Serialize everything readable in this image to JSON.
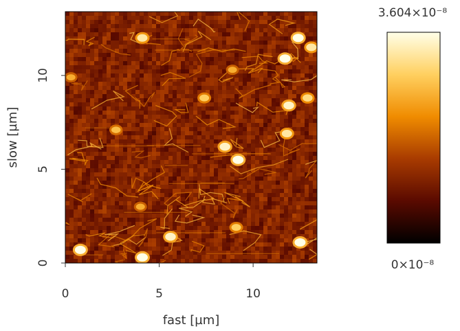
{
  "chart_data": {
    "type": "heatmap",
    "title": "",
    "xlabel": "fast [µm]",
    "ylabel": "slow [µm]",
    "xlim": [
      0,
      13.4
    ],
    "ylim": [
      0,
      13.4
    ],
    "xticks": [
      {
        "value": 0,
        "label": "0"
      },
      {
        "value": 5,
        "label": "5"
      },
      {
        "value": 10,
        "label": "10"
      }
    ],
    "yticks": [
      {
        "value": 0,
        "label": "0"
      },
      {
        "value": 5,
        "label": "5"
      },
      {
        "value": 10,
        "label": "10"
      }
    ],
    "colorbar": {
      "colormap": "afmhot",
      "min": 0,
      "max": 3.604e-08,
      "min_label": "0×10⁻⁸",
      "max_label": "3.604×10⁻⁸",
      "colors": [
        "#000000",
        "#5a0a00",
        "#a83b00",
        "#f08c00",
        "#ffd060",
        "#ffffe8"
      ]
    },
    "features": [
      {
        "x": 0.8,
        "y": 0.7,
        "level": 1.0
      },
      {
        "x": 4.1,
        "y": 0.3,
        "level": 1.0
      },
      {
        "x": 5.6,
        "y": 1.4,
        "level": 0.95
      },
      {
        "x": 12.5,
        "y": 1.1,
        "level": 1.0
      },
      {
        "x": 9.1,
        "y": 1.9,
        "level": 0.8
      },
      {
        "x": 4.0,
        "y": 3.0,
        "level": 0.7
      },
      {
        "x": 9.2,
        "y": 5.5,
        "level": 1.0
      },
      {
        "x": 8.5,
        "y": 6.2,
        "level": 0.95
      },
      {
        "x": 11.8,
        "y": 6.9,
        "level": 0.9
      },
      {
        "x": 2.7,
        "y": 7.1,
        "level": 0.75
      },
      {
        "x": 11.9,
        "y": 8.4,
        "level": 0.95
      },
      {
        "x": 12.9,
        "y": 8.8,
        "level": 0.85
      },
      {
        "x": 7.4,
        "y": 8.8,
        "level": 0.8
      },
      {
        "x": 11.7,
        "y": 10.9,
        "level": 1.0
      },
      {
        "x": 13.1,
        "y": 11.5,
        "level": 0.9
      },
      {
        "x": 12.4,
        "y": 12.0,
        "level": 1.0
      },
      {
        "x": 4.1,
        "y": 12.0,
        "level": 0.9
      },
      {
        "x": 8.9,
        "y": 10.3,
        "level": 0.7
      },
      {
        "x": 0.3,
        "y": 9.9,
        "level": 0.7
      }
    ]
  }
}
